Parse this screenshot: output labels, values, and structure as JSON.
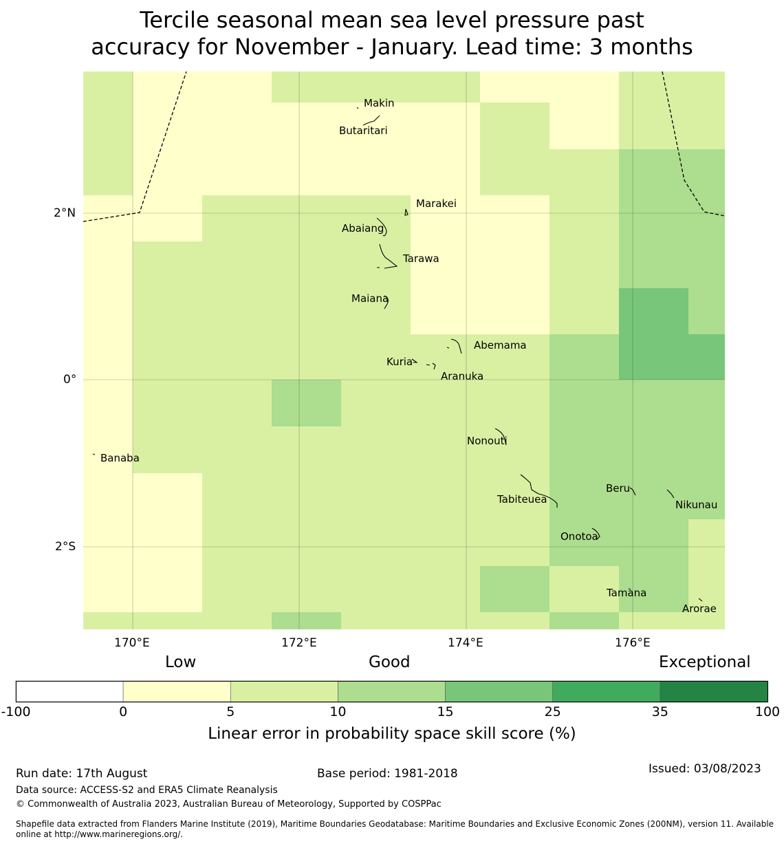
{
  "title": {
    "line1": "Tercile seasonal mean sea level pressure past",
    "line2": "accuracy for November - January. Lead time: 3 months"
  },
  "map": {
    "lat_ticks": [
      "2°N",
      "0°",
      "2°S"
    ],
    "lon_ticks": [
      "170°E",
      "172°E",
      "174°E",
      "176°E"
    ],
    "islands": [
      {
        "name": "Makin"
      },
      {
        "name": "Butaritari"
      },
      {
        "name": "Marakei"
      },
      {
        "name": "Abaiang"
      },
      {
        "name": "Tarawa"
      },
      {
        "name": "Maiana"
      },
      {
        "name": "Abemama"
      },
      {
        "name": "Kuria"
      },
      {
        "name": "Aranuka"
      },
      {
        "name": "Banaba"
      },
      {
        "name": "Nonouti"
      },
      {
        "name": "Beru"
      },
      {
        "name": "Tabiteuea"
      },
      {
        "name": "Nikunau"
      },
      {
        "name": "Onotoa"
      },
      {
        "name": "Tamana"
      },
      {
        "name": "Arorae"
      }
    ],
    "grid_cells": [
      {
        "row": 0,
        "cols": [
          "5-10",
          "0-5",
          "0-5",
          "5-10",
          "5-10",
          "5-10",
          "0-5",
          "0-5",
          "5-10",
          "5-10"
        ]
      },
      {
        "row": 1,
        "cols": [
          "5-10",
          "0-5",
          "0-5",
          "0-5",
          "0-5",
          "0-5",
          "5-10",
          "0-5",
          "5-10",
          "5-10"
        ]
      },
      {
        "row": 2,
        "cols": [
          "5-10",
          "0-5",
          "0-5",
          "0-5",
          "0-5",
          "0-5",
          "5-10",
          "5-10",
          "10-15",
          "10-15"
        ]
      },
      {
        "row": 3,
        "cols": [
          "0-5",
          "0-5",
          "5-10",
          "5-10",
          "5-10",
          "0-5",
          "0-5",
          "5-10",
          "10-15",
          "10-15"
        ]
      },
      {
        "row": 4,
        "cols": [
          "0-5",
          "5-10",
          "5-10",
          "5-10",
          "5-10",
          "0-5",
          "0-5",
          "5-10",
          "10-15",
          "10-15"
        ]
      },
      {
        "row": 5,
        "cols": [
          "0-5",
          "5-10",
          "5-10",
          "5-10",
          "5-10",
          "0-5",
          "0-5",
          "5-10",
          "15-25",
          "10-15"
        ]
      },
      {
        "row": 6,
        "cols": [
          "0-5",
          "5-10",
          "5-10",
          "5-10",
          "5-10",
          "5-10",
          "5-10",
          "10-15",
          "15-25",
          "15-25"
        ]
      },
      {
        "row": 7,
        "cols": [
          "0-5",
          "5-10",
          "5-10",
          "10-15",
          "5-10",
          "5-10",
          "5-10",
          "10-15",
          "10-15",
          "10-15"
        ]
      },
      {
        "row": 8,
        "cols": [
          "0-5",
          "5-10",
          "5-10",
          "5-10",
          "5-10",
          "5-10",
          "5-10",
          "10-15",
          "10-15",
          "10-15"
        ]
      },
      {
        "row": 9,
        "cols": [
          "0-5",
          "0-5",
          "5-10",
          "5-10",
          "5-10",
          "5-10",
          "5-10",
          "10-15",
          "10-15",
          "10-15"
        ]
      },
      {
        "row": 10,
        "cols": [
          "0-5",
          "0-5",
          "5-10",
          "5-10",
          "5-10",
          "5-10",
          "5-10",
          "10-15",
          "10-15",
          "5-10"
        ]
      },
      {
        "row": 11,
        "cols": [
          "0-5",
          "0-5",
          "5-10",
          "5-10",
          "5-10",
          "5-10",
          "10-15",
          "5-10",
          "10-15",
          "5-10"
        ]
      },
      {
        "row": 12,
        "cols": [
          "5-10",
          "5-10",
          "5-10",
          "10-15",
          "5-10",
          "5-10",
          "5-10",
          "10-15",
          "5-10",
          "5-10"
        ]
      }
    ]
  },
  "colorbar": {
    "category_labels": [
      "Low",
      "Good",
      "Exceptional"
    ],
    "ticks": [
      "-100",
      "0",
      "5",
      "10",
      "15",
      "25",
      "35",
      "100"
    ],
    "colors": [
      "#ffffff",
      "#ffffcc",
      "#d9f0a3",
      "#addd8e",
      "#78c679",
      "#41ab5d",
      "#238443"
    ],
    "label": "Linear error in probability space skill score (%)"
  },
  "footer": {
    "run_date": "Run date: 17th August",
    "base_period": "Base period: 1981-2018",
    "issued": "Issued: 03/08/2023",
    "data_source": "Data source: ACCESS-S2 and ERA5 Climate Reanalysis",
    "copyright": "© Commonwealth of Australia 2023, Australian Bureau of Meteorology, Supported by COSPPac",
    "shapefile_line1": "Shapefile data extracted from Flanders Marine Institute (2019), Maritime Boundaries Geodatabase: Maritime Boundaries and Exclusive Economic Zones (200NM), version 11. Available",
    "shapefile_line2": "online at http://www.marineregions.org/."
  }
}
